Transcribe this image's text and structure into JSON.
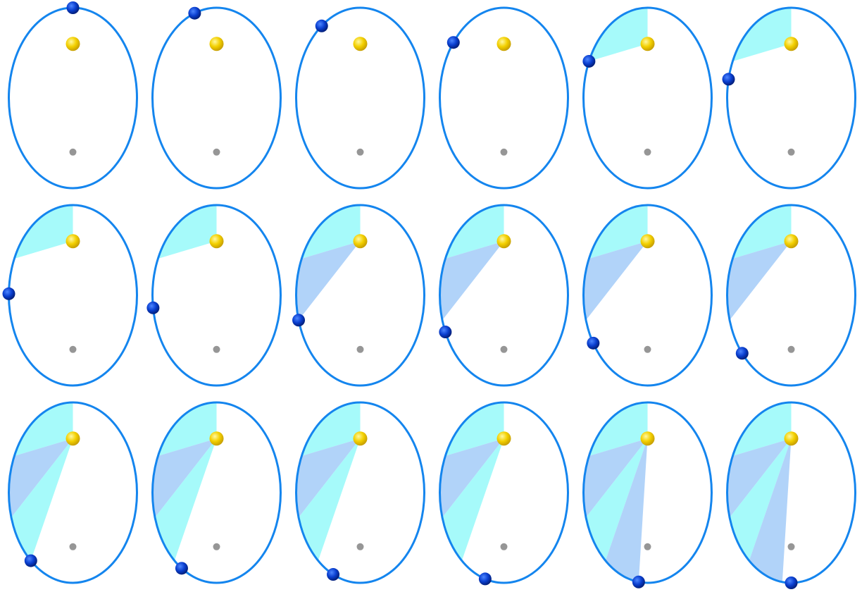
{
  "colors": {
    "background": "#ffffff",
    "orbit_stroke": "#1485ee",
    "sweep_a": "#a6fafa",
    "sweep_b": "#b1d3f9",
    "sun_highlight": "#fff8a0",
    "sun_mid": "#f3d000",
    "sun_shadow": "#c8a000",
    "planet_highlight": "#4d86ff",
    "planet_mid": "#0a3fd0",
    "planet_shadow": "#021f7a",
    "empty_focus": "#969696"
  },
  "icons": {
    "sun": "sun-focus-icon",
    "planet": "planet-icon",
    "empty_focus": "empty-focus-dot-icon"
  },
  "orbit": {
    "eccentricity": 0.6,
    "frames": 18,
    "sweep_interval_frames": 4,
    "planet_angle_deg": [
      -90,
      -110,
      -127,
      -142,
      -156,
      -168,
      -179,
      -188,
      -196,
      -204,
      -212,
      -220,
      -229,
      -237,
      -245,
      -253,
      -262,
      -270
    ]
  }
}
